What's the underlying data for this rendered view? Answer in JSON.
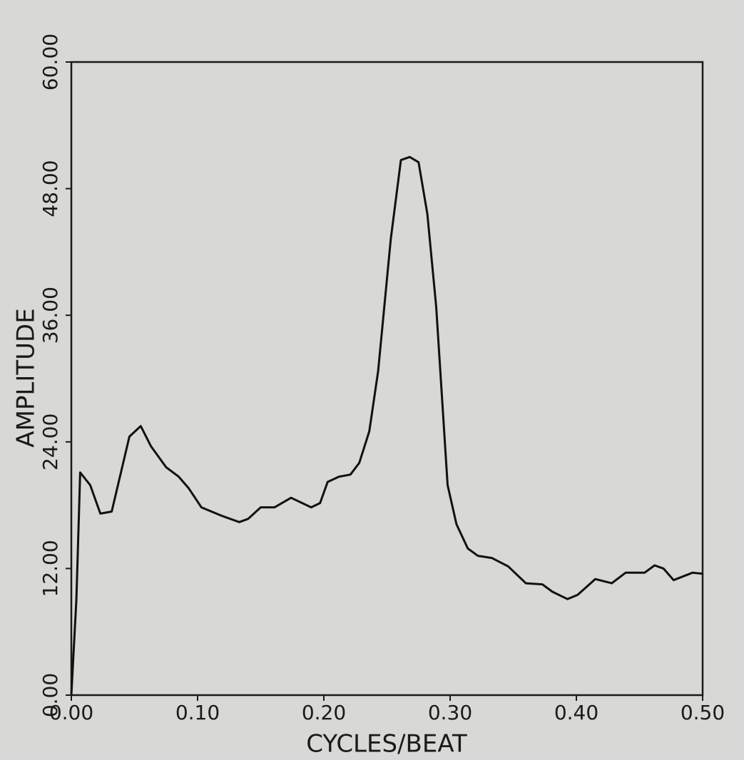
{
  "chart_data": {
    "type": "line",
    "x_label": "CYCLES/BEAT",
    "y_label": "AMPLITUDE",
    "color": "#111111",
    "x": [
      0,
      0.004,
      0.007,
      0.015,
      0.023,
      0.032,
      0.046,
      0.055,
      0.063,
      0.075,
      0.085,
      0.093,
      0.103,
      0.119,
      0.133,
      0.14,
      0.15,
      0.161,
      0.174,
      0.19,
      0.197,
      0.203,
      0.212,
      0.221,
      0.228,
      0.236,
      0.243,
      0.253,
      0.261,
      0.268,
      0.275,
      0.282,
      0.289,
      0.298,
      0.305,
      0.314,
      0.322,
      0.333,
      0.346,
      0.36,
      0.373,
      0.381,
      0.393,
      0.401,
      0.415,
      0.428,
      0.439,
      0.454,
      0.462,
      0.469,
      0.477,
      0.492,
      0.5
    ],
    "values": [
      0,
      9.1,
      21.1,
      19.9,
      17.2,
      17.4,
      24.5,
      25.5,
      23.6,
      21.6,
      20.7,
      19.6,
      17.8,
      17.0,
      16.4,
      16.7,
      17.8,
      17.8,
      18.7,
      17.8,
      18.2,
      20.2,
      20.7,
      20.9,
      22.0,
      25.0,
      30.7,
      43.2,
      50.7,
      51.0,
      50.5,
      45.6,
      36.8,
      19.9,
      16.2,
      13.9,
      13.2,
      13.0,
      12.2,
      10.6,
      10.5,
      9.8,
      9.1,
      9.5,
      11.0,
      10.6,
      11.6,
      11.6,
      12.3,
      12.0,
      10.9,
      11.6,
      11.5
    ],
    "xlim": [
      0,
      0.5
    ],
    "ylim": [
      0,
      60
    ],
    "xticks": [
      {
        "value": 0,
        "label": "0.00"
      },
      {
        "value": 0.1,
        "label": "0.10"
      },
      {
        "value": 0.2,
        "label": "0.20"
      },
      {
        "value": 0.3,
        "label": "0.30"
      },
      {
        "value": 0.4,
        "label": "0.40"
      },
      {
        "value": 0.5,
        "label": "0.50"
      }
    ],
    "yticks": [
      {
        "value": 0,
        "label": "0.00"
      },
      {
        "value": 12,
        "label": "12.00"
      },
      {
        "value": 24,
        "label": "24.00"
      },
      {
        "value": 36,
        "label": "36.00"
      },
      {
        "value": 48,
        "label": "48.00"
      },
      {
        "value": 60,
        "label": "60.00"
      }
    ]
  }
}
